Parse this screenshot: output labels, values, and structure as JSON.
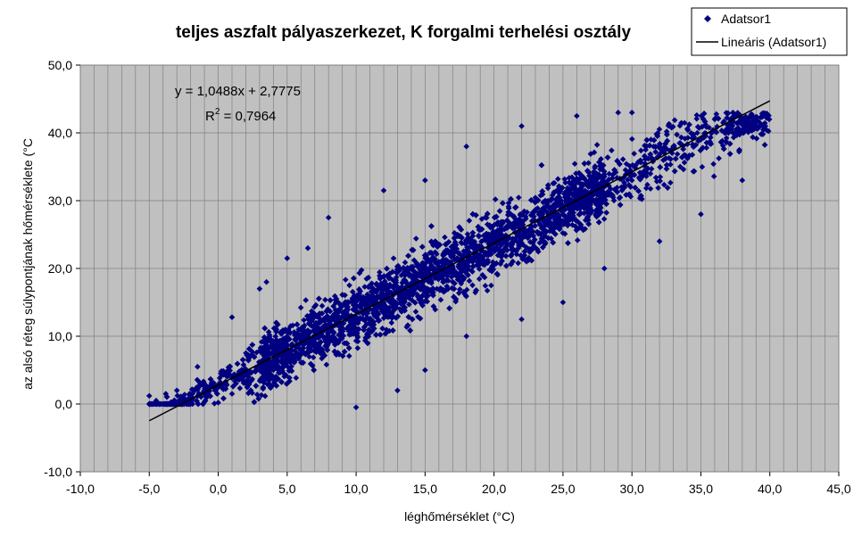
{
  "chart_data": {
    "type": "scatter",
    "title": "teljes aszfalt pályaszerkezet, K forgalmi terhelési osztály",
    "xlabel": "léghőmérséklet (°C)",
    "ylabel": "az alsó réteg súlypontjának hőmérséklete (°C",
    "xlim": [
      -10,
      45
    ],
    "ylim": [
      -10,
      50
    ],
    "x_ticks": [
      "-10,0",
      "-5,0",
      "0,0",
      "5,0",
      "10,0",
      "15,0",
      "20,0",
      "25,0",
      "30,0",
      "35,0",
      "40,0",
      "45,0"
    ],
    "y_ticks": [
      "-10,0",
      "0,0",
      "10,0",
      "20,0",
      "30,0",
      "40,0",
      "50,0"
    ],
    "grid": true,
    "legend_placement": "top-right",
    "series": [
      {
        "name": "Adatsor1",
        "kind": "scatter",
        "color": "#000080",
        "marker": "diamond",
        "x_range": [
          -5,
          40
        ],
        "point_count": 5000,
        "points": [
          [
            -5.0,
            1.2
          ],
          [
            -4.5,
            0.5
          ],
          [
            -3.8,
            1.5
          ],
          [
            -3.0,
            2.0
          ],
          [
            -2.0,
            0.3
          ],
          [
            -1.0,
            0.3
          ],
          [
            0.0,
            0.2
          ],
          [
            1.0,
            1.5
          ],
          [
            -1.5,
            5.5
          ],
          [
            1.0,
            12.8
          ],
          [
            3.0,
            17.0
          ],
          [
            3.5,
            18.0
          ],
          [
            5.0,
            21.5
          ],
          [
            6.5,
            23.0
          ],
          [
            8.0,
            27.5
          ],
          [
            2.0,
            3.0
          ],
          [
            4.0,
            5.0
          ],
          [
            6.0,
            8.0
          ],
          [
            8.0,
            9.0
          ],
          [
            10.0,
            12.0
          ],
          [
            12.0,
            15.0
          ],
          [
            15.0,
            20.0
          ],
          [
            17.0,
            22.0
          ],
          [
            20.0,
            25.0
          ],
          [
            22.0,
            27.0
          ],
          [
            25.0,
            28.0
          ],
          [
            27.0,
            30.0
          ],
          [
            30.0,
            33.0
          ],
          [
            33.0,
            38.0
          ],
          [
            35.0,
            39.0
          ],
          [
            36.0,
            42.0
          ],
          [
            37.0,
            40.0
          ],
          [
            39.5,
            39.8
          ],
          [
            12.0,
            31.5
          ],
          [
            15.0,
            33.0
          ],
          [
            18.0,
            38.0
          ],
          [
            22.0,
            41.0
          ],
          [
            26.0,
            42.5
          ],
          [
            29.0,
            43.0
          ],
          [
            30.0,
            43.0
          ],
          [
            10.0,
            -0.5
          ],
          [
            13.0,
            2.0
          ],
          [
            15.0,
            5.0
          ],
          [
            18.0,
            10.0
          ],
          [
            22.0,
            12.5
          ],
          [
            25.0,
            15.0
          ],
          [
            28.0,
            20.0
          ],
          [
            32.0,
            24.0
          ],
          [
            35.0,
            28.0
          ],
          [
            38.0,
            33.0
          ]
        ]
      },
      {
        "name": "Lineáris (Adatsor1)",
        "kind": "line",
        "color": "#000000",
        "slope": 1.0488,
        "intercept": 2.7775,
        "x_range": [
          -5,
          40
        ]
      }
    ],
    "annotations": {
      "equation": "y = 1,0488x + 2,7775",
      "r2_prefix": "R",
      "r2_sup": "2",
      "r2_value": " = 0,7964"
    }
  }
}
